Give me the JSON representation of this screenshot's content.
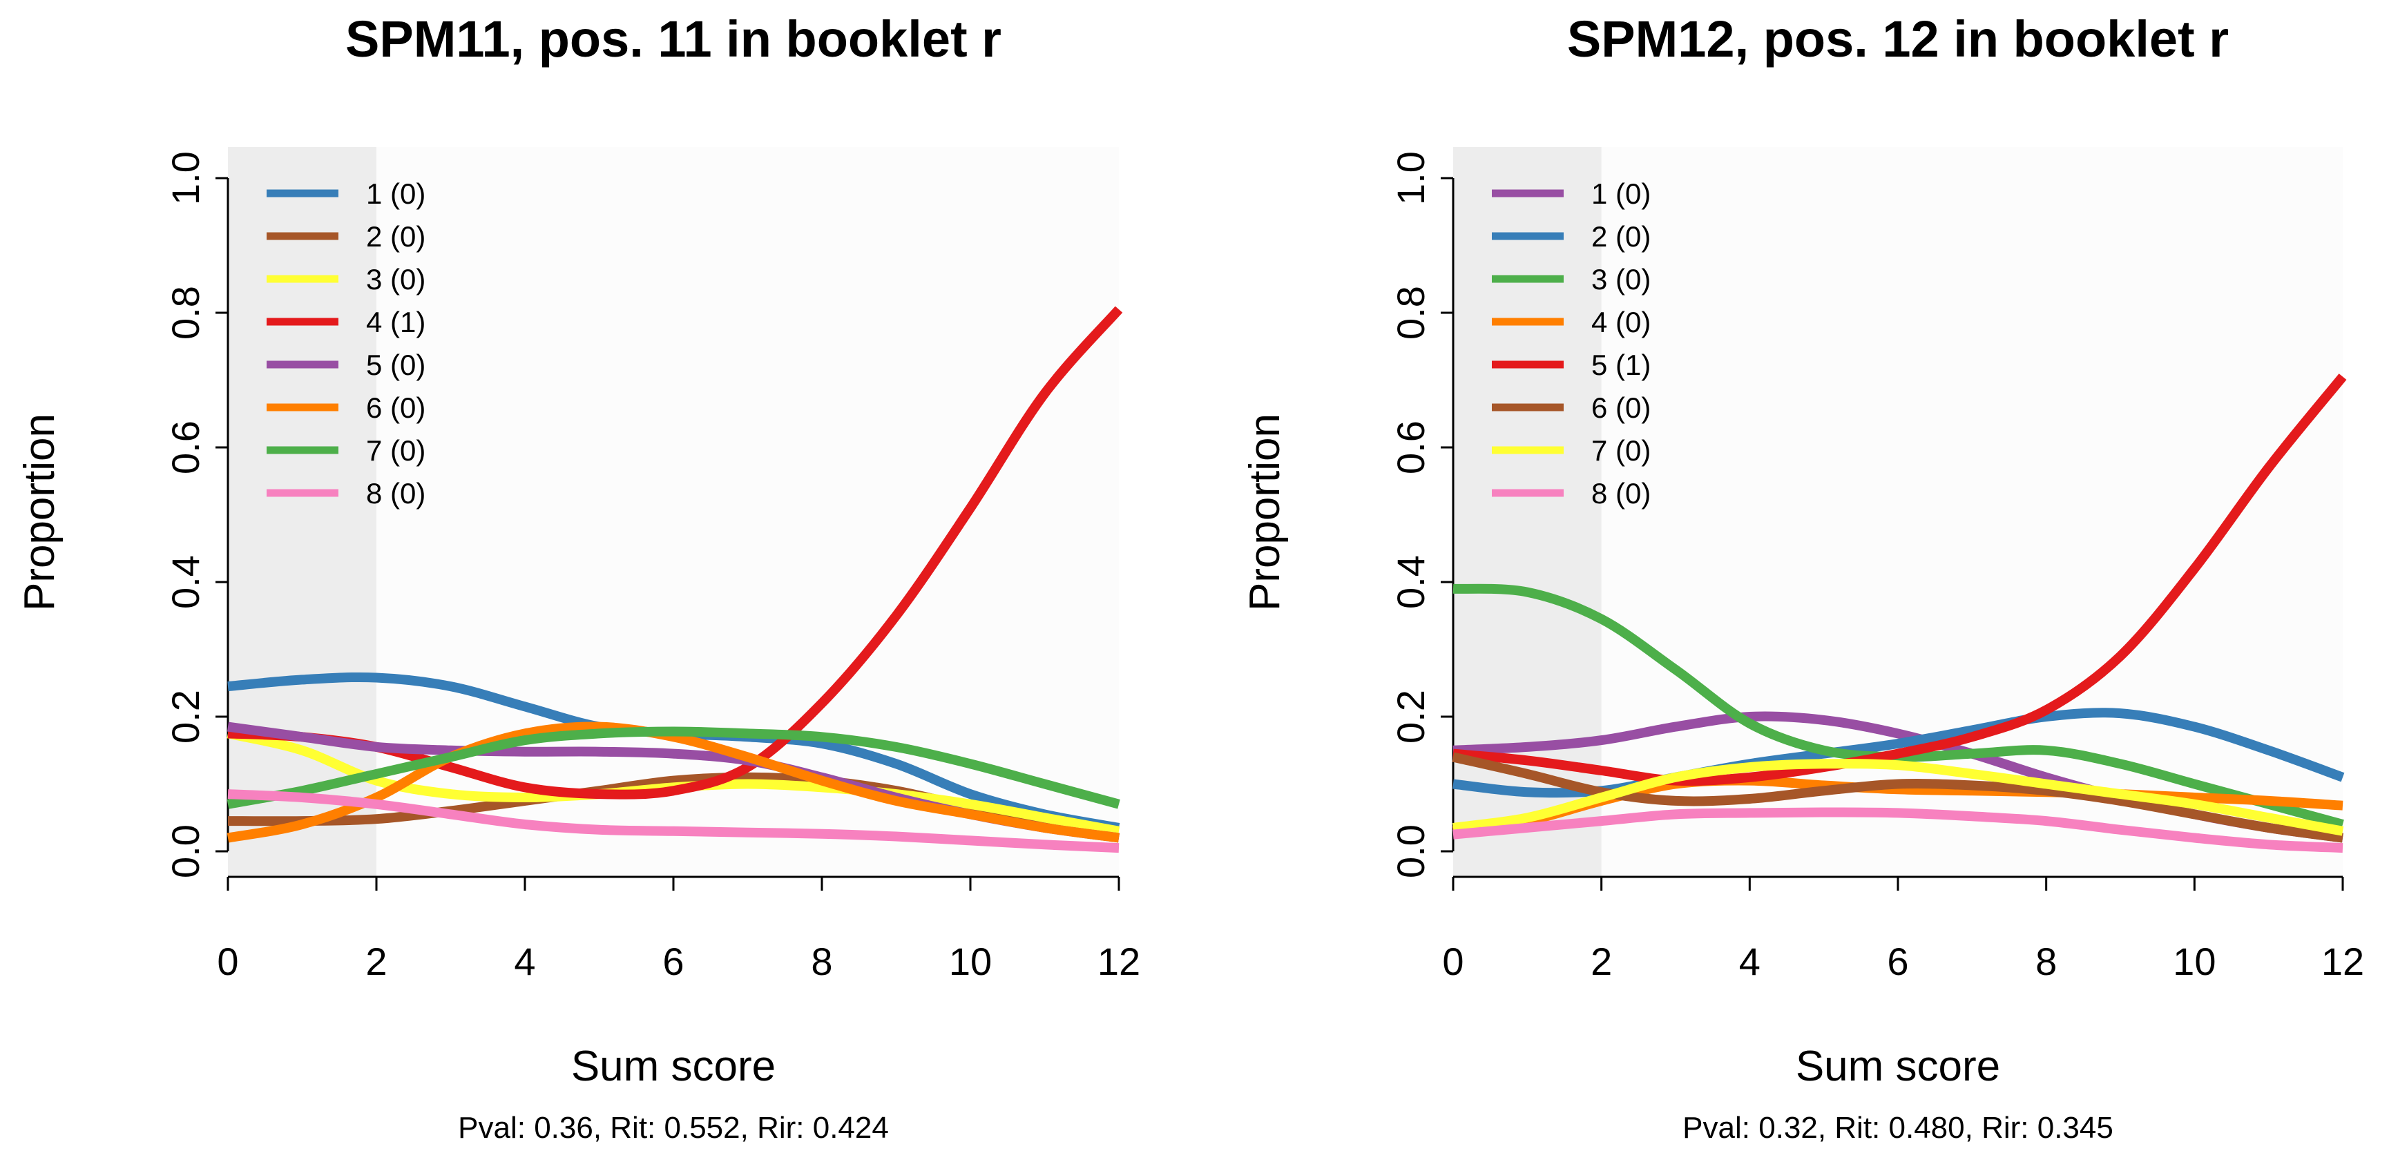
{
  "chart_data": [
    {
      "type": "line",
      "title": "SPM11, pos. 11 in booklet r",
      "xlabel": "Sum score",
      "ylabel": "Proportion",
      "stats": "Pval: 0.36, Rit: 0.552, Rir: 0.424",
      "xlim": [
        0,
        12
      ],
      "ylim": [
        0,
        1
      ],
      "xticks": [
        "0",
        "2",
        "4",
        "6",
        "8",
        "10",
        "12"
      ],
      "yticks": [
        "0.0",
        "0.2",
        "0.4",
        "0.6",
        "0.8",
        "1.0"
      ],
      "shaded_region": [
        0,
        2
      ],
      "x": [
        0,
        1,
        2,
        3,
        4,
        5,
        6,
        7,
        8,
        9,
        10,
        11,
        12
      ],
      "series": [
        {
          "name": "1 (0)",
          "color": "#377EB8",
          "values": [
            0.245,
            0.255,
            0.258,
            0.245,
            0.215,
            0.185,
            0.175,
            0.17,
            0.16,
            0.13,
            0.085,
            0.055,
            0.035
          ]
        },
        {
          "name": "2 (0)",
          "color": "#A65628",
          "values": [
            0.045,
            0.045,
            0.048,
            0.06,
            0.075,
            0.09,
            0.105,
            0.11,
            0.105,
            0.09,
            0.065,
            0.04,
            0.02
          ]
        },
        {
          "name": "3 (0)",
          "color": "#FFFF33",
          "values": [
            0.175,
            0.15,
            0.105,
            0.085,
            0.08,
            0.085,
            0.095,
            0.1,
            0.095,
            0.085,
            0.07,
            0.05,
            0.03
          ]
        },
        {
          "name": "4 (1)",
          "color": "#E41A1C",
          "values": [
            0.175,
            0.17,
            0.155,
            0.125,
            0.095,
            0.085,
            0.09,
            0.125,
            0.22,
            0.35,
            0.51,
            0.68,
            0.805
          ]
        },
        {
          "name": "5 (0)",
          "color": "#984EA3",
          "values": [
            0.185,
            0.17,
            0.155,
            0.15,
            0.148,
            0.148,
            0.145,
            0.135,
            0.11,
            0.08,
            0.055,
            0.035,
            0.02
          ]
        },
        {
          "name": "6 (0)",
          "color": "#FF7F00",
          "values": [
            0.02,
            0.04,
            0.08,
            0.14,
            0.175,
            0.185,
            0.17,
            0.14,
            0.105,
            0.075,
            0.055,
            0.035,
            0.02
          ]
        },
        {
          "name": "7 (0)",
          "color": "#4DAF4A",
          "values": [
            0.07,
            0.09,
            0.115,
            0.14,
            0.165,
            0.175,
            0.178,
            0.175,
            0.17,
            0.155,
            0.13,
            0.1,
            0.07
          ]
        },
        {
          "name": "8 (0)",
          "color": "#F781BF",
          "values": [
            0.085,
            0.08,
            0.07,
            0.055,
            0.04,
            0.032,
            0.03,
            0.028,
            0.026,
            0.022,
            0.016,
            0.01,
            0.005
          ]
        }
      ]
    },
    {
      "type": "line",
      "title": "SPM12, pos. 12 in booklet r",
      "xlabel": "Sum score",
      "ylabel": "Proportion",
      "stats": "Pval: 0.32, Rit: 0.480, Rir: 0.345",
      "xlim": [
        0,
        12
      ],
      "ylim": [
        0,
        1
      ],
      "xticks": [
        "0",
        "2",
        "4",
        "6",
        "8",
        "10",
        "12"
      ],
      "yticks": [
        "0.0",
        "0.2",
        "0.4",
        "0.6",
        "0.8",
        "1.0"
      ],
      "shaded_region": [
        0,
        2
      ],
      "x": [
        0,
        1,
        2,
        3,
        4,
        5,
        6,
        7,
        8,
        9,
        10,
        11,
        12
      ],
      "series": [
        {
          "name": "1 (0)",
          "color": "#984EA3",
          "values": [
            0.15,
            0.155,
            0.165,
            0.185,
            0.2,
            0.195,
            0.175,
            0.145,
            0.11,
            0.08,
            0.055,
            0.035,
            0.02
          ]
        },
        {
          "name": "2 (0)",
          "color": "#377EB8",
          "values": [
            0.1,
            0.088,
            0.09,
            0.11,
            0.13,
            0.145,
            0.16,
            0.18,
            0.2,
            0.205,
            0.185,
            0.15,
            0.11
          ]
        },
        {
          "name": "3 (0)",
          "color": "#4DAF4A",
          "values": [
            0.39,
            0.385,
            0.345,
            0.27,
            0.19,
            0.15,
            0.14,
            0.145,
            0.15,
            0.13,
            0.1,
            0.07,
            0.04
          ]
        },
        {
          "name": "4 (0)",
          "color": "#FF7F00",
          "values": [
            0.03,
            0.045,
            0.075,
            0.1,
            0.105,
            0.098,
            0.092,
            0.09,
            0.088,
            0.085,
            0.08,
            0.075,
            0.068
          ]
        },
        {
          "name": "5 (1)",
          "color": "#E41A1C",
          "values": [
            0.145,
            0.135,
            0.12,
            0.105,
            0.11,
            0.125,
            0.145,
            0.17,
            0.21,
            0.29,
            0.42,
            0.57,
            0.705
          ]
        },
        {
          "name": "6 (0)",
          "color": "#A65628",
          "values": [
            0.14,
            0.115,
            0.088,
            0.075,
            0.078,
            0.09,
            0.1,
            0.098,
            0.09,
            0.075,
            0.055,
            0.035,
            0.02
          ]
        },
        {
          "name": "7 (0)",
          "color": "#FFFF33",
          "values": [
            0.035,
            0.05,
            0.08,
            0.11,
            0.125,
            0.13,
            0.128,
            0.115,
            0.1,
            0.085,
            0.07,
            0.05,
            0.03
          ]
        },
        {
          "name": "8 (0)",
          "color": "#F781BF",
          "values": [
            0.025,
            0.035,
            0.045,
            0.055,
            0.057,
            0.058,
            0.057,
            0.052,
            0.045,
            0.032,
            0.02,
            0.01,
            0.005
          ]
        }
      ]
    }
  ]
}
